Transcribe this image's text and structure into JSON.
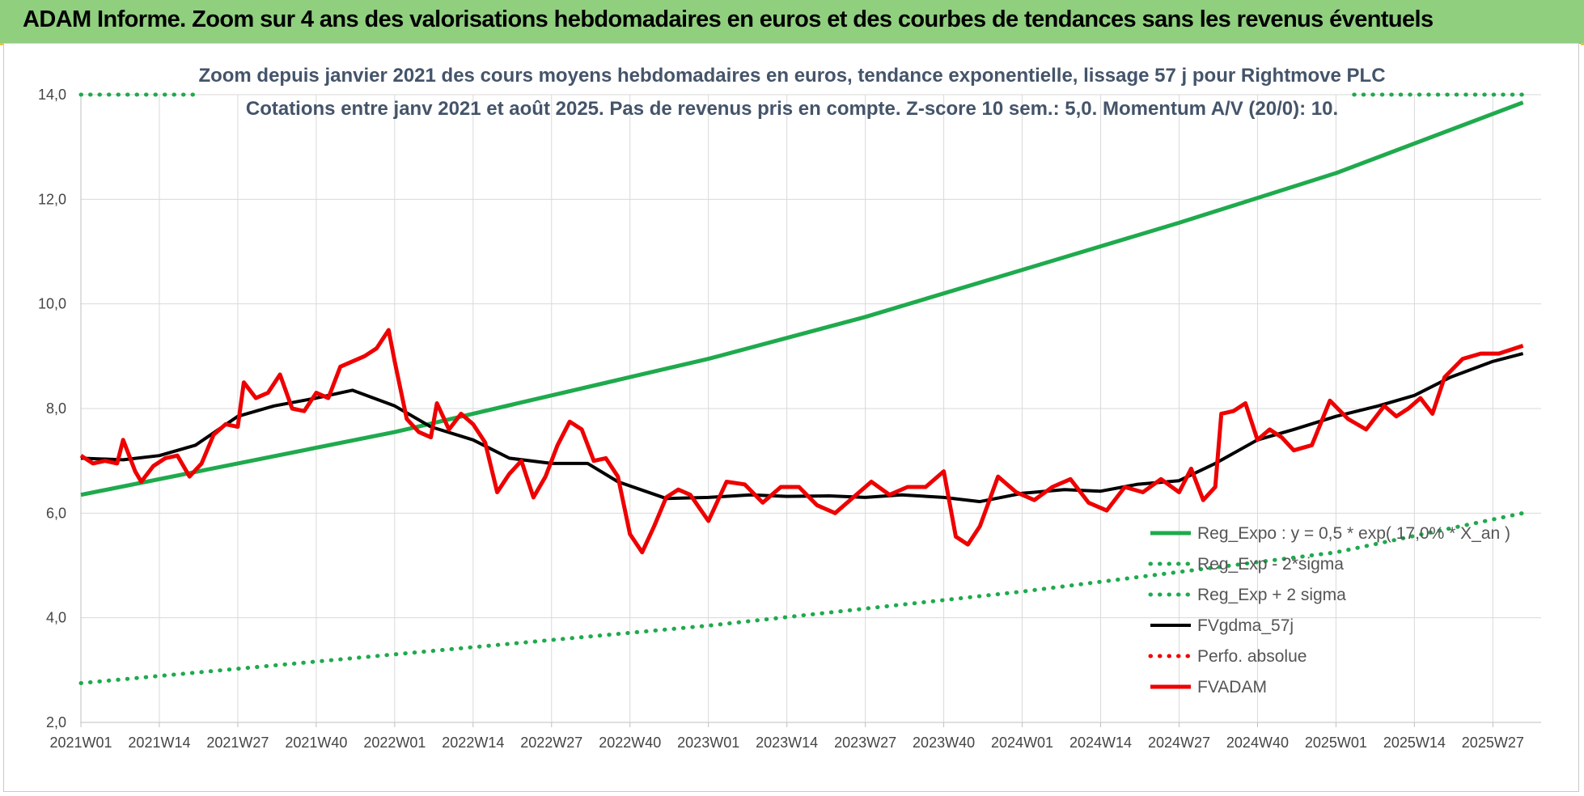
{
  "banner": {
    "title": "ADAM Informe. Zoom sur 4 ans des valorisations hebdomadaires en euros et des courbes de tendances sans les revenus éventuels"
  },
  "colors": {
    "banner": "#8fcf7e",
    "trend": "#1faa4d",
    "band": "#1faa4d",
    "moving_average": "#000000",
    "price": "#ee0000",
    "grid": "#d9d9d9"
  },
  "chart_data": {
    "type": "line",
    "title_lines": [
      "Zoom depuis janvier 2021 des cours moyens hebdomadaires en euros, tendance exponentielle, lissage 57 j pour Rightmove PLC",
      "Cotations entre janv 2021 et août 2025.  Pas de revenus pris en compte. Z-score 10 sem.: 5,0. Momentum A/V (20/0): 10."
    ],
    "x_ticks": [
      "2021W01",
      "2021W14",
      "2021W27",
      "2021W40",
      "2022W01",
      "2022W14",
      "2022W27",
      "2022W40",
      "2023W01",
      "2023W14",
      "2023W27",
      "2023W40",
      "2024W01",
      "2024W14",
      "2024W27",
      "2024W40",
      "2025W01",
      "2025W14",
      "2025W27"
    ],
    "y_ticks": [
      "2,0",
      "4,0",
      "6,0",
      "8,0",
      "10,0",
      "12,0",
      "14,0"
    ],
    "ylim": [
      2,
      14
    ],
    "grid": true,
    "legend_position": "bottom-right",
    "series": [
      {
        "name": "Reg_Expo : y = 0,5 * exp( 17,0% * X_an )",
        "style": "solid-thick",
        "color": "#1faa4d",
        "x": [
          "2021W01",
          "2021W27",
          "2022W01",
          "2022W27",
          "2023W01",
          "2023W27",
          "2024W01",
          "2024W27",
          "2025W01",
          "2025W32"
        ],
        "values": [
          6.35,
          6.95,
          7.55,
          8.25,
          8.95,
          9.75,
          10.65,
          11.55,
          12.5,
          13.85
        ]
      },
      {
        "name": "Reg_Exp - 2*sigma",
        "style": "dotted",
        "color": "#1faa4d",
        "x": [
          "2021W01",
          "2022W01",
          "2023W01",
          "2024W01",
          "2025W01",
          "2025W32"
        ],
        "values": [
          2.75,
          3.3,
          3.85,
          4.5,
          5.25,
          6.0
        ]
      },
      {
        "name": "Reg_Exp + 2 sigma",
        "style": "dotted",
        "color": "#1faa4d",
        "x": [
          "2021W01",
          "2021W21",
          "2025W04",
          "2025W32"
        ],
        "values": [
          14.0,
          14.0,
          14.0,
          14.0
        ]
      },
      {
        "name": "FVgdma_57j",
        "style": "solid",
        "color": "#000000",
        "x": [
          "2021W01",
          "2021W08",
          "2021W14",
          "2021W20",
          "2021W27",
          "2021W33",
          "2021W40",
          "2021W46",
          "2022W01",
          "2022W07",
          "2022W14",
          "2022W20",
          "2022W27",
          "2022W33",
          "2022W38",
          "2022W46",
          "2023W01",
          "2023W08",
          "2023W14",
          "2023W21",
          "2023W27",
          "2023W33",
          "2023W40",
          "2023W46",
          "2024W01",
          "2024W08",
          "2024W14",
          "2024W20",
          "2024W27",
          "2024W33",
          "2024W40",
          "2024W46",
          "2025W01",
          "2025W08",
          "2025W14",
          "2025W20",
          "2025W27",
          "2025W32"
        ],
        "values": [
          7.05,
          7.02,
          7.1,
          7.3,
          7.85,
          8.05,
          8.2,
          8.35,
          8.05,
          7.65,
          7.4,
          7.05,
          6.95,
          6.95,
          6.6,
          6.28,
          6.3,
          6.35,
          6.32,
          6.33,
          6.3,
          6.35,
          6.3,
          6.22,
          6.38,
          6.45,
          6.42,
          6.55,
          6.62,
          6.95,
          7.4,
          7.6,
          7.85,
          8.05,
          8.25,
          8.6,
          8.9,
          9.05
        ]
      },
      {
        "name": "Perfo. absolue",
        "style": "dotted",
        "color": "#ee0000",
        "x": [],
        "values": []
      },
      {
        "name": "FVADAM",
        "style": "solid-thick",
        "color": "#ee0000",
        "x": [
          "2021W01",
          "2021W03",
          "2021W05",
          "2021W07",
          "2021W08",
          "2021W10",
          "2021W11",
          "2021W13",
          "2021W15",
          "2021W17",
          "2021W19",
          "2021W21",
          "2021W23",
          "2021W25",
          "2021W27",
          "2021W28",
          "2021W30",
          "2021W32",
          "2021W34",
          "2021W36",
          "2021W38",
          "2021W40",
          "2021W42",
          "2021W44",
          "2021W46",
          "2021W48",
          "2021W50",
          "2021W52",
          "2022W01",
          "2022W03",
          "2022W05",
          "2022W07",
          "2022W08",
          "2022W10",
          "2022W12",
          "2022W14",
          "2022W16",
          "2022W18",
          "2022W20",
          "2022W22",
          "2022W24",
          "2022W26",
          "2022W28",
          "2022W30",
          "2022W32",
          "2022W34",
          "2022W36",
          "2022W38",
          "2022W40",
          "2022W42",
          "2022W44",
          "2022W46",
          "2022W48",
          "2022W50",
          "2023W01",
          "2023W04",
          "2023W07",
          "2023W10",
          "2023W13",
          "2023W16",
          "2023W19",
          "2023W22",
          "2023W25",
          "2023W28",
          "2023W31",
          "2023W34",
          "2023W37",
          "2023W40",
          "2023W42",
          "2023W44",
          "2023W46",
          "2023W49",
          "2023W52",
          "2024W03",
          "2024W06",
          "2024W09",
          "2024W12",
          "2024W15",
          "2024W18",
          "2024W21",
          "2024W24",
          "2024W27",
          "2024W29",
          "2024W31",
          "2024W33",
          "2024W34",
          "2024W36",
          "2024W38",
          "2024W40",
          "2024W42",
          "2024W44",
          "2024W46",
          "2024W49",
          "2024W52",
          "2025W03",
          "2025W06",
          "2025W09",
          "2025W11",
          "2025W13",
          "2025W15",
          "2025W17",
          "2025W19",
          "2025W22",
          "2025W25",
          "2025W28",
          "2025W32"
        ],
        "values": [
          7.1,
          6.95,
          7.0,
          6.95,
          7.4,
          6.8,
          6.6,
          6.9,
          7.05,
          7.1,
          6.7,
          6.95,
          7.5,
          7.7,
          7.65,
          8.5,
          8.2,
          8.3,
          8.65,
          8.0,
          7.95,
          8.3,
          8.2,
          8.8,
          8.9,
          9.0,
          9.15,
          9.5,
          8.9,
          7.8,
          7.55,
          7.45,
          8.1,
          7.6,
          7.9,
          7.7,
          7.35,
          6.4,
          6.75,
          7.0,
          6.3,
          6.7,
          7.3,
          7.75,
          7.6,
          7.0,
          7.05,
          6.7,
          5.6,
          5.25,
          5.75,
          6.3,
          6.45,
          6.35,
          5.85,
          6.6,
          6.55,
          6.2,
          6.5,
          6.5,
          6.15,
          6.0,
          6.3,
          6.6,
          6.35,
          6.5,
          6.5,
          6.8,
          5.55,
          5.4,
          5.75,
          6.7,
          6.4,
          6.25,
          6.5,
          6.65,
          6.2,
          6.05,
          6.5,
          6.4,
          6.65,
          6.4,
          6.85,
          6.25,
          6.5,
          7.9,
          7.95,
          8.1,
          7.4,
          7.6,
          7.45,
          7.2,
          7.3,
          8.15,
          7.8,
          7.6,
          8.05,
          7.85,
          8.0,
          8.2,
          7.9,
          8.6,
          8.95,
          9.05,
          9.05,
          9.2
        ]
      }
    ]
  }
}
